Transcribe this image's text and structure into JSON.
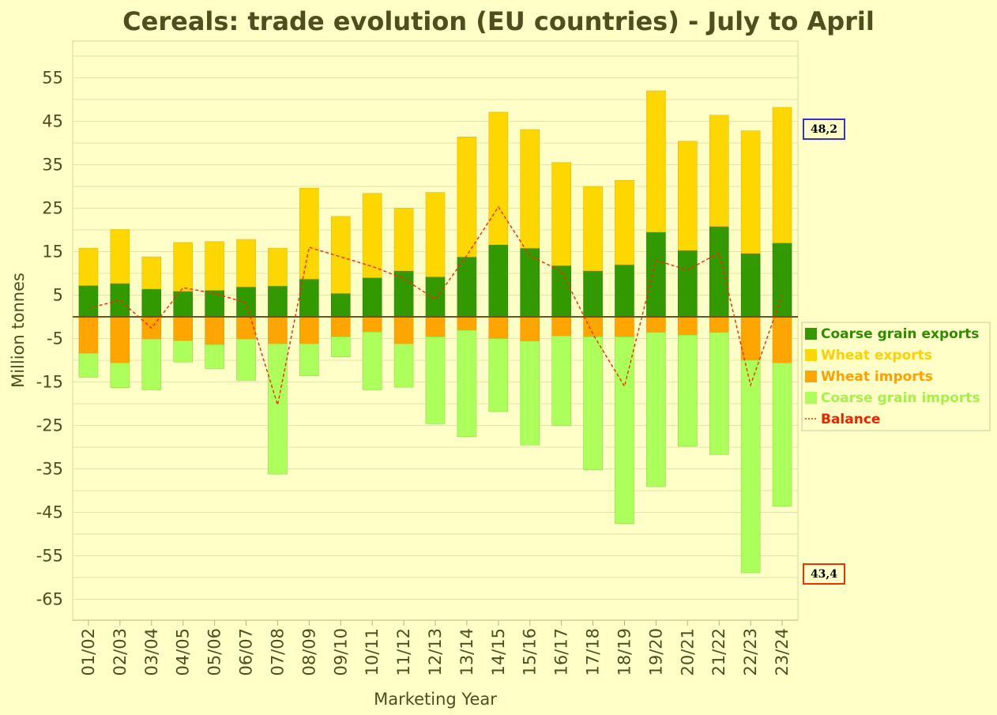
{
  "chart_data": {
    "type": "bar",
    "title": "Cereals: trade evolution (EU countries) - July to April",
    "xlabel": "Marketing Year",
    "ylabel": "Million tonnes",
    "ylim": [
      -70,
      63
    ],
    "yticks": [
      55,
      45,
      35,
      25,
      15,
      5,
      -5,
      -15,
      -25,
      -35,
      -45,
      -55,
      -65
    ],
    "grid": true,
    "stacked": true,
    "legend_position": "right",
    "categories": [
      "01/02",
      "02/03",
      "03/04",
      "04/05",
      "05/06",
      "06/07",
      "07/08",
      "08/09",
      "09/10",
      "10/11",
      "11/12",
      "12/13",
      "13/14",
      "14/15",
      "15/16",
      "16/17",
      "17/18",
      "18/19",
      "19/20",
      "20/21",
      "21/22",
      "22/23",
      "23/24"
    ],
    "series": [
      {
        "name": "Coarse grain exports",
        "color": "#339900",
        "values": [
          7.2,
          7.7,
          6.4,
          5.9,
          6.1,
          6.9,
          7.1,
          8.7,
          5.4,
          9.0,
          10.6,
          9.2,
          13.8,
          16.6,
          15.8,
          11.8,
          10.6,
          12.0,
          19.5,
          15.3,
          20.8,
          14.6,
          17.0
        ]
      },
      {
        "name": "Wheat exports",
        "color": "#ffd700",
        "values": [
          8.6,
          12.4,
          7.4,
          11.2,
          11.2,
          10.9,
          8.7,
          20.9,
          17.7,
          19.4,
          14.4,
          19.4,
          27.6,
          30.5,
          27.3,
          23.7,
          19.4,
          19.4,
          32.5,
          25.1,
          25.6,
          28.2,
          31.2
        ]
      },
      {
        "name": "Wheat imports",
        "color": "#ffa500",
        "values": [
          -8.4,
          -10.6,
          -5.1,
          -5.5,
          -6.4,
          -5.1,
          -6.2,
          -6.2,
          -4.6,
          -3.5,
          -6.2,
          -4.6,
          -3.1,
          -5.0,
          -5.6,
          -4.4,
          -4.6,
          -4.6,
          -3.6,
          -4.2,
          -3.6,
          -10.0,
          -10.6
        ]
      },
      {
        "name": "Coarse grain imports",
        "color": "#adff5c",
        "values": [
          -5.5,
          -5.7,
          -11.7,
          -4.9,
          -5.5,
          -9.5,
          -30.0,
          -7.4,
          -4.6,
          -13.3,
          -10.0,
          -20.0,
          -24.5,
          -16.8,
          -23.9,
          -20.6,
          -30.6,
          -43.0,
          -35.5,
          -25.6,
          -28.1,
          -48.9,
          -33.0
        ]
      },
      {
        "name": "Balance",
        "color": "#ff2200",
        "type": "line",
        "values": [
          2.0,
          3.8,
          -2.6,
          6.7,
          5.4,
          3.2,
          -20.3,
          16.0,
          13.8,
          11.6,
          8.8,
          4.0,
          14.1,
          25.3,
          14.0,
          10.5,
          -4.0,
          -16.0,
          13.0,
          10.8,
          14.7,
          -15.7,
          5.0
        ]
      }
    ],
    "annotations": [
      {
        "text": "48,2",
        "border_color": "#3333cc"
      },
      {
        "text": "43,4",
        "border_color": "#ee3300"
      }
    ]
  }
}
